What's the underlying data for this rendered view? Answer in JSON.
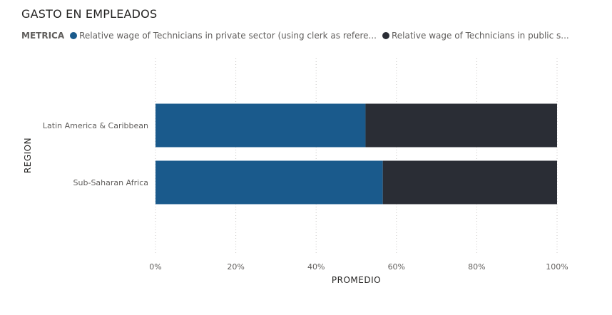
{
  "title": "GASTO EN EMPLEADOS",
  "legend": {
    "title": "METRICA",
    "entries": [
      {
        "label": "Relative wage of Technicians in private sector  (using clerk as refere...",
        "color": "#1a5a8c"
      },
      {
        "label": "Relative wage of Technicians in public s...",
        "color": "#2a2d35"
      }
    ]
  },
  "chart_data": {
    "type": "bar",
    "orientation": "horizontal",
    "stacked": "100%",
    "title": "GASTO EN EMPLEADOS",
    "xlabel": "PROMEDIO",
    "ylabel": "REGION",
    "categories": [
      "Latin America & Caribbean",
      "Sub-Saharan Africa"
    ],
    "series": [
      {
        "name": "Relative wage of Technicians in private sector  (using clerk as refere...",
        "color": "#1a5a8c",
        "values": [
          52.3,
          56.6
        ]
      },
      {
        "name": "Relative wage of Technicians in public s...",
        "color": "#2a2d35",
        "values": [
          47.7,
          43.4
        ]
      }
    ],
    "xlim": [
      0,
      100
    ],
    "xticks": [
      "0%",
      "20%",
      "40%",
      "60%",
      "80%",
      "100%"
    ],
    "grid": true,
    "legend_position": "top-left"
  }
}
